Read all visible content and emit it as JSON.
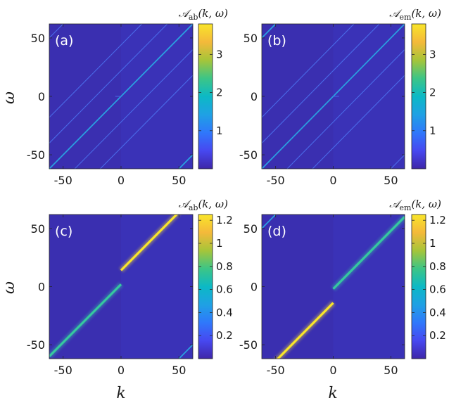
{
  "figure": {
    "xlabel": "k",
    "ylabel": "ω"
  },
  "colors": {
    "background": "#3a2fb0",
    "background_light": "#3f44d8",
    "line_dim": "#4a6ae8",
    "line_mid": "#2a9fe0",
    "line_bright": "#36c8a0",
    "line_peak": "#c8d030",
    "line_top": "#f9e52a",
    "parula": [
      "#3e26a8",
      "#4748f0",
      "#2f78fb",
      "#1fa1e4",
      "#0cb9c5",
      "#3dc586",
      "#a6c539",
      "#f4b93a",
      "#f9e52a"
    ]
  },
  "chart_data": [
    {
      "type": "heatmap",
      "panel_label": "(a)",
      "colorbar": {
        "title_main": "𝒜",
        "title_sub": "ab",
        "title_args": "(k, ω)",
        "range": [
          0.0,
          3.8
        ],
        "ticks": [
          1,
          2,
          3
        ],
        "tick_labels": [
          "1",
          "2",
          "3"
        ]
      },
      "xlim": [
        -62,
        62
      ],
      "ylim": [
        -62,
        62
      ],
      "xticks": [
        -50,
        0,
        50
      ],
      "xtick_labels": [
        "-50",
        "0",
        "50"
      ],
      "yticks": [
        -50,
        0,
        50
      ],
      "ytick_labels": [
        "-50",
        "0",
        "50"
      ],
      "show_x_tick_labels": true,
      "show_y_tick_labels": true,
      "lines": [
        {
          "slope": 1,
          "offset": 0,
          "k_from": -62,
          "k_to": 0,
          "intensity": 0.28
        },
        {
          "slope": 1,
          "offset": 0,
          "k_from": 0,
          "k_to": 62,
          "intensity": 0.22
        },
        {
          "slope": 1,
          "offset": -22,
          "k_from": -62,
          "k_to": 62,
          "intensity": 0.12
        },
        {
          "slope": 1,
          "offset": 22,
          "k_from": -62,
          "k_to": 62,
          "intensity": 0.1
        },
        {
          "slope": 1,
          "offset": -44,
          "k_from": -62,
          "k_to": 62,
          "intensity": 0.08
        },
        {
          "slope": 1,
          "offset": 44,
          "k_from": -62,
          "k_to": 62,
          "intensity": 0.08
        },
        {
          "slope": 1,
          "offset": -112,
          "k_from": 40,
          "k_to": 62,
          "intensity": 0.25
        },
        {
          "slope": 1,
          "offset": 112,
          "k_from": -62,
          "k_to": -40,
          "intensity": 0.12
        }
      ],
      "segments": [
        {
          "k_from": -5,
          "k_to": 0,
          "omega": 0,
          "intensity": 0.12
        }
      ]
    },
    {
      "type": "heatmap",
      "panel_label": "(b)",
      "colorbar": {
        "title_main": "𝒜",
        "title_sub": "em",
        "title_args": "(k, ω)",
        "range": [
          0.0,
          3.8
        ],
        "ticks": [
          1,
          2,
          3
        ],
        "tick_labels": [
          "1",
          "2",
          "3"
        ]
      },
      "xlim": [
        -62,
        62
      ],
      "ylim": [
        -62,
        62
      ],
      "xticks": [
        -50,
        0,
        50
      ],
      "xtick_labels": [
        "-50",
        "0",
        "50"
      ],
      "yticks": [
        -50,
        0,
        50
      ],
      "ytick_labels": [
        "-50",
        "0",
        "50"
      ],
      "show_x_tick_labels": true,
      "show_y_tick_labels": true,
      "lines": [
        {
          "slope": 1,
          "offset": 0,
          "k_from": -62,
          "k_to": 0,
          "intensity": 0.22
        },
        {
          "slope": 1,
          "offset": 0,
          "k_from": 0,
          "k_to": 62,
          "intensity": 0.28
        },
        {
          "slope": 1,
          "offset": -22,
          "k_from": -62,
          "k_to": 62,
          "intensity": 0.1
        },
        {
          "slope": 1,
          "offset": 22,
          "k_from": -62,
          "k_to": 62,
          "intensity": 0.12
        },
        {
          "slope": 1,
          "offset": -44,
          "k_from": -62,
          "k_to": 62,
          "intensity": 0.08
        },
        {
          "slope": 1,
          "offset": 44,
          "k_from": -62,
          "k_to": 62,
          "intensity": 0.08
        },
        {
          "slope": 1,
          "offset": 112,
          "k_from": -62,
          "k_to": -40,
          "intensity": 0.25
        },
        {
          "slope": 1,
          "offset": -112,
          "k_from": 40,
          "k_to": 62,
          "intensity": 0.12
        }
      ],
      "segments": [
        {
          "k_from": 0,
          "k_to": 5,
          "omega": 0,
          "intensity": 0.12
        }
      ]
    },
    {
      "type": "heatmap",
      "panel_label": "(c)",
      "colorbar": {
        "title_main": "𝒜",
        "title_sub": "ab",
        "title_args": "(k, ω)",
        "range": [
          0.0,
          1.25
        ],
        "ticks": [
          0.2,
          0.4,
          0.6,
          0.8,
          1,
          1.2
        ],
        "tick_labels": [
          "0.2",
          "0.4",
          "0.6",
          "0.8",
          "1",
          "1.2"
        ]
      },
      "xlim": [
        -62,
        62
      ],
      "ylim": [
        -62,
        62
      ],
      "xticks": [
        -50,
        0,
        50
      ],
      "xtick_labels": [
        "-50",
        "0",
        "50"
      ],
      "yticks": [
        -50,
        0,
        50
      ],
      "ytick_labels": [
        "-50",
        "0",
        "50"
      ],
      "show_x_tick_labels": true,
      "show_y_tick_labels": true,
      "lines": [
        {
          "slope": 1,
          "offset": 2,
          "k_from": -62,
          "k_to": 0,
          "intensity": 0.42
        },
        {
          "slope": 1,
          "offset": 14,
          "k_from": 0,
          "k_to": 50,
          "intensity": 0.85
        },
        {
          "slope": 1,
          "offset": -112,
          "k_from": 48,
          "k_to": 62,
          "intensity": 0.3
        }
      ],
      "segments": []
    },
    {
      "type": "heatmap",
      "panel_label": "(d)",
      "colorbar": {
        "title_main": "𝒜",
        "title_sub": "em",
        "title_args": "(k, ω)",
        "range": [
          0.0,
          1.25
        ],
        "ticks": [
          0.2,
          0.4,
          0.6,
          0.8,
          1,
          1.2
        ],
        "tick_labels": [
          "0.2",
          "0.4",
          "0.6",
          "0.8",
          "1",
          "1.2"
        ]
      },
      "xlim": [
        -62,
        62
      ],
      "ylim": [
        -62,
        62
      ],
      "xticks": [
        -50,
        0,
        50
      ],
      "xtick_labels": [
        "-50",
        "0",
        "50"
      ],
      "yticks": [
        -50,
        0,
        50
      ],
      "ytick_labels": [
        "-50",
        "0",
        "50"
      ],
      "show_x_tick_labels": true,
      "show_y_tick_labels": true,
      "lines": [
        {
          "slope": 1,
          "offset": -14,
          "k_from": -50,
          "k_to": 0,
          "intensity": 0.85
        },
        {
          "slope": 1,
          "offset": -2,
          "k_from": 0,
          "k_to": 62,
          "intensity": 0.42
        },
        {
          "slope": 1,
          "offset": 112,
          "k_from": -62,
          "k_to": -48,
          "intensity": 0.3
        }
      ],
      "segments": []
    }
  ]
}
